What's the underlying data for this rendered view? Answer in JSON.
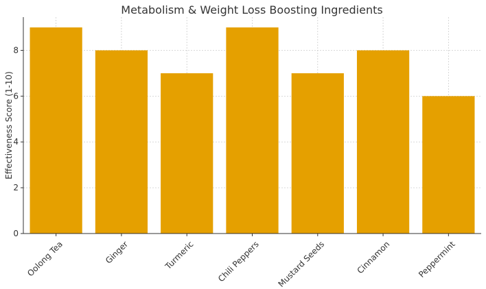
{
  "chart_data": {
    "type": "bar",
    "title": "Metabolism & Weight Loss Boosting Ingredients",
    "xlabel": "",
    "ylabel": "Effectiveness Score (1-10)",
    "categories": [
      "Oolong Tea",
      "Ginger",
      "Turmeric",
      "Chili Peppers",
      "Mustard Seeds",
      "Cinnamon",
      "Peppermint"
    ],
    "values": [
      9,
      8,
      7,
      9,
      7,
      8,
      6
    ],
    "ylim": [
      0,
      9.45
    ],
    "yticks": [
      0,
      2,
      4,
      6,
      8
    ],
    "grid": true,
    "bar_color": "#e5a000",
    "grid_color": "#cccccc",
    "axis_color": "#333333"
  }
}
